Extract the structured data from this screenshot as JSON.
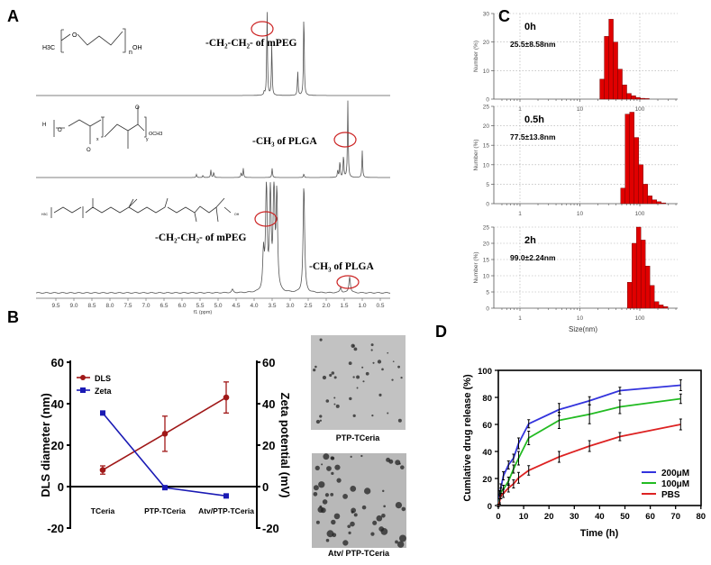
{
  "panels": {
    "a": "A",
    "b": "B",
    "c": "C",
    "d": "D"
  },
  "chart_data": [
    {
      "panel": "A",
      "type": "line",
      "xlabel": "f1 (ppm)",
      "xlim": [
        9.5,
        0.5
      ],
      "xticks": [
        "9.5",
        "9.0",
        "8.5",
        "8.0",
        "7.5",
        "7.0",
        "6.5",
        "6.0",
        "5.5",
        "5.0",
        "4.5",
        "4.0",
        "3.5",
        "3.0",
        "2.5",
        "2.0",
        "1.5",
        "1.0",
        "0.5"
      ],
      "spectra": [
        {
          "structure": {
            "left": "H3C",
            "right": "OH",
            "sub": "n",
            "o": "O"
          },
          "peaks": [
            [
              3.64,
              1.0
            ],
            [
              3.51,
              0.6
            ],
            [
              3.72,
              0.04
            ],
            [
              2.79,
              0.28
            ],
            [
              2.62,
              1.0
            ]
          ],
          "annotations": [
            {
              "text": "-CH₂-CH₂- of mPEG",
              "ppm": 3.7
            }
          ]
        },
        {
          "structure": {
            "left": "H",
            "right": "OCH3",
            "sub_x": "x",
            "sub_y": "y",
            "o": "O"
          },
          "peaks": [
            [
              1.4,
              1.0
            ],
            [
              1.52,
              0.3
            ],
            [
              1.62,
              0.22
            ],
            [
              1.68,
              0.1
            ],
            [
              1.0,
              0.35
            ],
            [
              3.5,
              0.12
            ],
            [
              2.62,
              0.05
            ],
            [
              4.3,
              0.12
            ],
            [
              4.36,
              0.06
            ],
            [
              5.2,
              0.1
            ],
            [
              5.12,
              0.07
            ],
            [
              5.6,
              0.04
            ],
            [
              5.42,
              0.03
            ]
          ],
          "annotations": [
            {
              "text": "-CH₃ of PLGA",
              "ppm": 1.4
            }
          ]
        },
        {
          "structure": {
            "left": "H3C",
            "right": "OH",
            "o": "O"
          },
          "peaks": [
            [
              3.66,
              1.0
            ],
            [
              3.55,
              0.95
            ],
            [
              3.45,
              1.0
            ],
            [
              3.37,
              0.9
            ],
            [
              3.74,
              0.35
            ],
            [
              2.62,
              1.0
            ],
            [
              1.35,
              0.15
            ],
            [
              4.6,
              0.03
            ],
            [
              1.6,
              0.05
            ]
          ],
          "annotations": [
            {
              "text": "-CH₂-CH₂- of mPEG",
              "ppm": 3.6
            },
            {
              "text": "-CH₃ of PLGA",
              "ppm": 1.35
            }
          ]
        }
      ],
      "highlight_color": "#cc2222"
    },
    {
      "panel": "B",
      "type": "line",
      "categories": [
        "TCeria",
        "PTP-TCeria",
        "Atv/PTP-TCeria"
      ],
      "ylabel": "DLS diameter (nm)",
      "y2label": "Zeta potential (mV)",
      "ylim": [
        -20,
        60
      ],
      "y2lim": [
        -20,
        60
      ],
      "yticks": [
        "60",
        "40",
        "20",
        "0",
        "-20"
      ],
      "legend": "top-left",
      "series": [
        {
          "name": "DLS",
          "color": "#a01818",
          "marker": "circle",
          "values": [
            8,
            25.5,
            43
          ],
          "errors": [
            2,
            8.5,
            7.5
          ],
          "axis": "left"
        },
        {
          "name": "Zeta",
          "color": "#1a1ab4",
          "marker": "square",
          "values": [
            35.5,
            -0.5,
            -4.5
          ],
          "axis": "right"
        }
      ],
      "images": [
        {
          "caption": "PTP-TCeria"
        },
        {
          "caption": "Atv/ PTP-TCeria"
        }
      ]
    },
    {
      "panel": "C",
      "type": "bar",
      "xlabel": "Size(nm)",
      "xscale": "log",
      "xlim": [
        0.4,
        400
      ],
      "xticks": [
        "1",
        "10",
        "100"
      ],
      "ylabel": "Number (%)",
      "color": "#e00000",
      "histograms": [
        {
          "label": "0h",
          "value": "25.5±8.58nm",
          "ylim": [
            0,
            30
          ],
          "yticks": [
            "0",
            "10",
            "20",
            "30"
          ],
          "bin_start_nm": 21.5,
          "values": [
            7,
            22,
            28,
            20,
            10.5,
            5,
            2,
            1.2,
            0.6,
            0.3,
            0.2
          ]
        },
        {
          "label": "0.5h",
          "value": "77.5±13.8nm",
          "ylim": [
            0,
            25
          ],
          "yticks": [
            "0",
            "5",
            "10",
            "15",
            "20",
            "25"
          ],
          "bin_start_nm": 48,
          "values": [
            4,
            23,
            23.5,
            17,
            10,
            5,
            2,
            1,
            0.5,
            0.2
          ]
        },
        {
          "label": "2h",
          "value": "99.0±2.24nm",
          "ylim": [
            0,
            25
          ],
          "yticks": [
            "0",
            "5",
            "10",
            "15",
            "20",
            "25"
          ],
          "bin_start_nm": 62,
          "values": [
            8,
            20,
            25,
            21,
            13,
            7,
            2,
            1,
            0.5
          ]
        }
      ]
    },
    {
      "panel": "D",
      "type": "line",
      "xlabel": "Time (h)",
      "ylabel": "Cumlative drug release (%)",
      "xlim": [
        0,
        80
      ],
      "ylim": [
        0,
        100
      ],
      "xticks": [
        "0",
        "10",
        "20",
        "30",
        "40",
        "50",
        "60",
        "70",
        "80"
      ],
      "yticks": [
        "0",
        "20",
        "40",
        "60",
        "80",
        "100"
      ],
      "legend": "bottom-right",
      "x": [
        0,
        0.5,
        1,
        2,
        4,
        6,
        8,
        12,
        24,
        36,
        48,
        72
      ],
      "series": [
        {
          "name": "200μM",
          "color": "#3333dd",
          "values": [
            0,
            8,
            13,
            22,
            30,
            35,
            46,
            60.5,
            71,
            77.5,
            85,
            89
          ],
          "errors": [
            1,
            3,
            3,
            3,
            3,
            3,
            4,
            3,
            4.5,
            3,
            2.5,
            4
          ]
        },
        {
          "name": "100μM",
          "color": "#22bb22",
          "values": [
            0,
            5,
            10,
            12,
            18,
            27,
            35,
            50,
            63,
            67.5,
            73,
            79
          ],
          "errors": [
            1,
            3,
            3,
            3,
            3,
            3,
            5,
            5,
            6,
            7,
            5,
            3.5
          ]
        },
        {
          "name": "PBS",
          "color": "#dd2222",
          "values": [
            0,
            3,
            7,
            9,
            13,
            16,
            20.5,
            26,
            36,
            44,
            51,
            60
          ],
          "errors": [
            1,
            2,
            2,
            3,
            3,
            3,
            4,
            3.5,
            4,
            4,
            3,
            4
          ]
        }
      ]
    }
  ]
}
